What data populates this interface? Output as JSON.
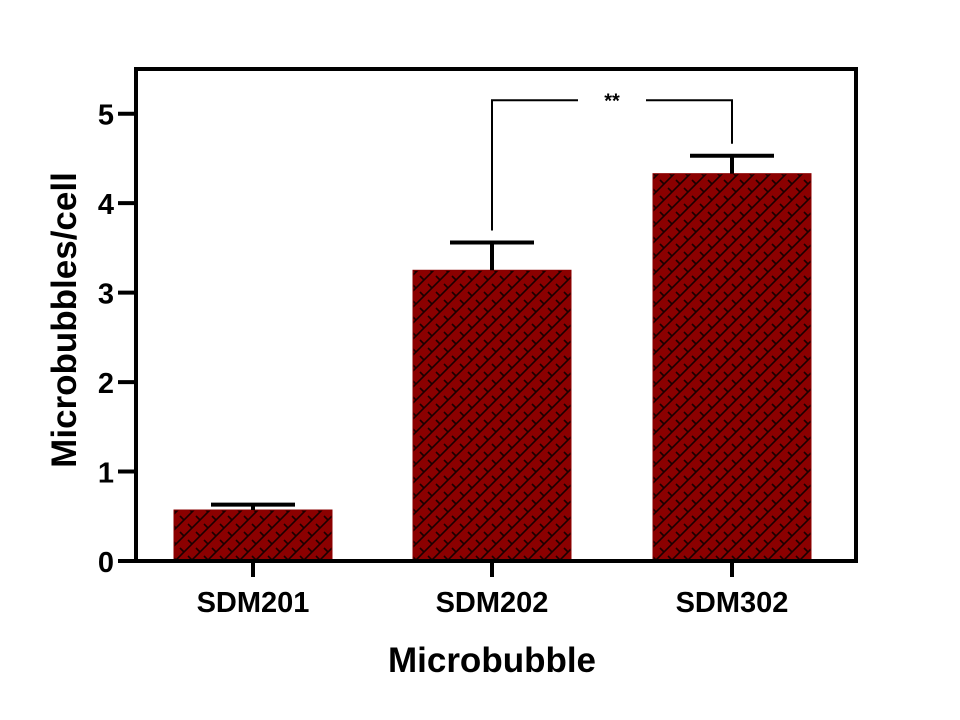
{
  "colors": {
    "bar_fill": "#8b0000",
    "hatch": "#1a0000",
    "axis": "#000000",
    "background": "#ffffff"
  },
  "chart_data": {
    "type": "bar",
    "title": "",
    "xlabel": "Microbubble",
    "ylabel": "Microbubbles/cell",
    "categories": [
      "SDM201",
      "SDM202",
      "SDM302"
    ],
    "series": [
      {
        "values": [
          0.57,
          3.25,
          4.33
        ],
        "error_plus": [
          0.06,
          0.31,
          0.2
        ]
      }
    ],
    "ylim": [
      0,
      5.5
    ],
    "yticks": [
      0,
      1,
      2,
      3,
      4,
      5
    ],
    "ytick_labels": [
      "0",
      "1",
      "2",
      "3",
      "4",
      "5"
    ],
    "grid": false,
    "legend": "none",
    "pattern": "brick-hatch",
    "annotations": [
      {
        "label": "**",
        "from_category": "SDM202",
        "to_category": "SDM302",
        "bracket_level": 5.15
      }
    ]
  }
}
